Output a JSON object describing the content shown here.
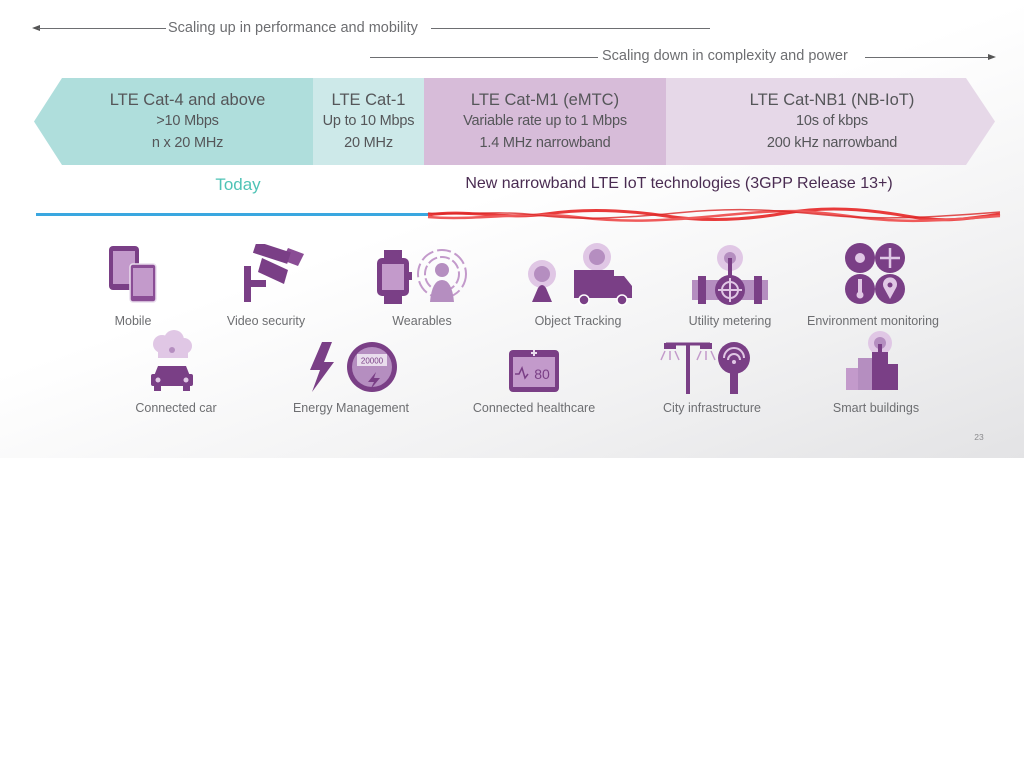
{
  "arrows": {
    "performance": "Scaling up in performance and mobility",
    "complexity": "Scaling down in complexity and power"
  },
  "categories": [
    {
      "title": "LTE Cat-4 and above",
      "line1": ">10 Mbps",
      "line2": "n x 20 MHz",
      "color": "#afdedc"
    },
    {
      "title": "LTE Cat-1",
      "line1": "Up to 10 Mbps",
      "line2": "20 MHz",
      "color": "#cde9e9"
    },
    {
      "title": "LTE Cat-M1 (eMTC)",
      "line1": "Variable rate up to 1 Mbps",
      "line2": "1.4 MHz narrowband",
      "color": "#d7bcd9"
    },
    {
      "title": "LTE Cat-NB1 (NB-IoT)",
      "line1": "10s of kbps",
      "line2": "200 kHz narrowband",
      "color": "#e6d8e8"
    }
  ],
  "today_label": "Today",
  "narrowband_label": "New narrowband LTE IoT technologies (3GPP Release 13+)",
  "use_cases_row1": [
    "Mobile",
    "Video security",
    "Wearables",
    "Object Tracking",
    "Utility metering",
    "Environment monitoring"
  ],
  "use_cases_row2": [
    "Connected car",
    "Energy Management",
    "Connected healthcare",
    "City infrastructure",
    "Smart buildings"
  ],
  "icons": {
    "energy_meter_value": "20000",
    "healthcare_value": "80"
  },
  "page_number": "23",
  "colors": {
    "teal": "#4fc3b6",
    "purple_dark": "#7a3f86",
    "purple_light": "#b58ec0",
    "blue_bar": "#3aa7e0",
    "red_scribble": "#e83a3a"
  }
}
